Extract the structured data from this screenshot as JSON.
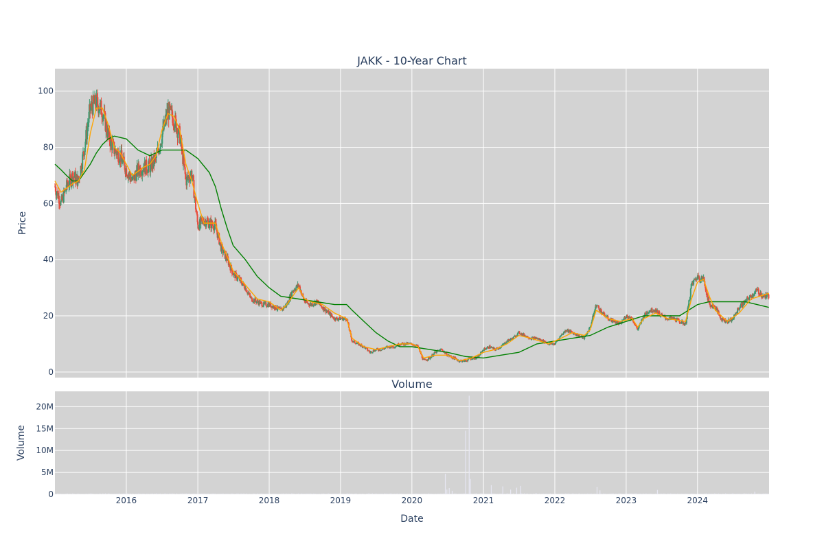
{
  "chart_data": [
    {
      "type": "candlestick",
      "title": "JAKK - 10-Year Chart",
      "xlabel": "",
      "ylabel": "Price",
      "ylim": [
        -2,
        108
      ],
      "yticks": [
        0,
        20,
        40,
        60,
        80,
        100
      ],
      "x_range": [
        "2015-01-01",
        "2025-01-01"
      ],
      "background": "#d3d3d3",
      "grid": true,
      "colors": {
        "up": "#3d9970",
        "down": "#e74c3c",
        "ma_fast": "#ffa500",
        "ma_slow": "#008000"
      },
      "price_path": [
        [
          "2015-01-01",
          66
        ],
        [
          "2015-02-01",
          60
        ],
        [
          "2015-03-01",
          66
        ],
        [
          "2015-04-01",
          70
        ],
        [
          "2015-05-01",
          68
        ],
        [
          "2015-06-01",
          80
        ],
        [
          "2015-07-01",
          94
        ],
        [
          "2015-08-01",
          96
        ],
        [
          "2015-09-01",
          93
        ],
        [
          "2015-10-01",
          84
        ],
        [
          "2015-11-01",
          79
        ],
        [
          "2015-12-01",
          77
        ],
        [
          "2016-01-01",
          72
        ],
        [
          "2016-02-01",
          68
        ],
        [
          "2016-03-01",
          72
        ],
        [
          "2016-04-01",
          73
        ],
        [
          "2016-05-01",
          73
        ],
        [
          "2016-06-01",
          76
        ],
        [
          "2016-07-01",
          84
        ],
        [
          "2016-08-01",
          93
        ],
        [
          "2016-09-01",
          90
        ],
        [
          "2016-10-01",
          84
        ],
        [
          "2016-11-01",
          68
        ],
        [
          "2016-12-01",
          71
        ],
        [
          "2017-01-01",
          52
        ],
        [
          "2017-02-01",
          54
        ],
        [
          "2017-03-01",
          53
        ],
        [
          "2017-04-01",
          52
        ],
        [
          "2017-05-01",
          44
        ],
        [
          "2017-06-01",
          40
        ],
        [
          "2017-07-01",
          35
        ],
        [
          "2017-08-01",
          33
        ],
        [
          "2017-09-01",
          30
        ],
        [
          "2017-10-01",
          26
        ],
        [
          "2017-11-01",
          25
        ],
        [
          "2017-12-01",
          24
        ],
        [
          "2018-01-01",
          24
        ],
        [
          "2018-02-01",
          23
        ],
        [
          "2018-03-01",
          22
        ],
        [
          "2018-04-01",
          24
        ],
        [
          "2018-05-01",
          29
        ],
        [
          "2018-06-01",
          31
        ],
        [
          "2018-07-01",
          25
        ],
        [
          "2018-08-01",
          24
        ],
        [
          "2018-09-01",
          25
        ],
        [
          "2018-10-01",
          23
        ],
        [
          "2018-11-01",
          21
        ],
        [
          "2018-12-01",
          19
        ],
        [
          "2019-01-01",
          19
        ],
        [
          "2019-02-01",
          19
        ],
        [
          "2019-03-01",
          11
        ],
        [
          "2019-04-01",
          10
        ],
        [
          "2019-05-01",
          9
        ],
        [
          "2019-06-01",
          7
        ],
        [
          "2019-07-01",
          8
        ],
        [
          "2019-08-01",
          8
        ],
        [
          "2019-09-01",
          9
        ],
        [
          "2019-10-01",
          9
        ],
        [
          "2019-11-01",
          10
        ],
        [
          "2019-12-01",
          10
        ],
        [
          "2020-01-01",
          10
        ],
        [
          "2020-02-01",
          9
        ],
        [
          "2020-03-01",
          4
        ],
        [
          "2020-04-01",
          5
        ],
        [
          "2020-05-01",
          7
        ],
        [
          "2020-06-01",
          8
        ],
        [
          "2020-07-01",
          6
        ],
        [
          "2020-08-01",
          5
        ],
        [
          "2020-09-01",
          4
        ],
        [
          "2020-10-01",
          4
        ],
        [
          "2020-11-01",
          5
        ],
        [
          "2020-12-01",
          5
        ],
        [
          "2021-01-01",
          8
        ],
        [
          "2021-02-01",
          9
        ],
        [
          "2021-03-01",
          8
        ],
        [
          "2021-04-01",
          9
        ],
        [
          "2021-05-01",
          11
        ],
        [
          "2021-06-01",
          12
        ],
        [
          "2021-07-01",
          14
        ],
        [
          "2021-08-01",
          13
        ],
        [
          "2021-09-01",
          12
        ],
        [
          "2021-10-01",
          12
        ],
        [
          "2021-11-01",
          11
        ],
        [
          "2021-12-01",
          10
        ],
        [
          "2022-01-01",
          10
        ],
        [
          "2022-02-01",
          13
        ],
        [
          "2022-03-01",
          15
        ],
        [
          "2022-04-01",
          14
        ],
        [
          "2022-05-01",
          13
        ],
        [
          "2022-06-01",
          12
        ],
        [
          "2022-07-01",
          16
        ],
        [
          "2022-08-01",
          24
        ],
        [
          "2022-09-01",
          21
        ],
        [
          "2022-10-01",
          19
        ],
        [
          "2022-11-01",
          18
        ],
        [
          "2022-12-01",
          17
        ],
        [
          "2023-01-01",
          20
        ],
        [
          "2023-02-01",
          19
        ],
        [
          "2023-03-01",
          15
        ],
        [
          "2023-04-01",
          20
        ],
        [
          "2023-05-01",
          22
        ],
        [
          "2023-06-01",
          22
        ],
        [
          "2023-07-01",
          20
        ],
        [
          "2023-08-01",
          19
        ],
        [
          "2023-09-01",
          19
        ],
        [
          "2023-10-01",
          18
        ],
        [
          "2023-11-01",
          17
        ],
        [
          "2023-12-01",
          31
        ],
        [
          "2024-01-01",
          34
        ],
        [
          "2024-02-01",
          33
        ],
        [
          "2024-03-01",
          24
        ],
        [
          "2024-04-01",
          23
        ],
        [
          "2024-05-01",
          19
        ],
        [
          "2024-06-01",
          18
        ],
        [
          "2024-07-01",
          19
        ],
        [
          "2024-08-01",
          23
        ],
        [
          "2024-09-01",
          25
        ],
        [
          "2024-10-01",
          27
        ],
        [
          "2024-11-01",
          29
        ],
        [
          "2024-12-01",
          27
        ],
        [
          "2024-12-31",
          27
        ]
      ],
      "ma_fast_path": [
        [
          "2015-01-01",
          68
        ],
        [
          "2015-02-01",
          64
        ],
        [
          "2015-04-01",
          67
        ],
        [
          "2015-05-01",
          68
        ],
        [
          "2015-06-01",
          72
        ],
        [
          "2015-07-01",
          85
        ],
        [
          "2015-08-01",
          94
        ],
        [
          "2015-09-01",
          94
        ],
        [
          "2015-10-01",
          88
        ],
        [
          "2015-11-01",
          80
        ],
        [
          "2015-12-01",
          78
        ],
        [
          "2016-01-01",
          74
        ],
        [
          "2016-02-01",
          70
        ],
        [
          "2016-04-01",
          73
        ],
        [
          "2016-05-01",
          74
        ],
        [
          "2016-06-01",
          77
        ],
        [
          "2016-07-01",
          86
        ],
        [
          "2016-08-01",
          92
        ],
        [
          "2016-09-01",
          91
        ],
        [
          "2016-10-01",
          86
        ],
        [
          "2016-11-01",
          74
        ],
        [
          "2016-12-01",
          68
        ],
        [
          "2017-01-01",
          60
        ],
        [
          "2017-02-01",
          53
        ],
        [
          "2017-04-01",
          53
        ],
        [
          "2017-05-01",
          46
        ],
        [
          "2017-06-01",
          41
        ],
        [
          "2017-07-01",
          36
        ],
        [
          "2017-09-01",
          31
        ],
        [
          "2017-11-01",
          26
        ],
        [
          "2018-01-01",
          25
        ],
        [
          "2018-03-01",
          22
        ],
        [
          "2018-04-01",
          24
        ],
        [
          "2018-06-01",
          30
        ],
        [
          "2018-07-01",
          26
        ],
        [
          "2018-08-01",
          25
        ],
        [
          "2018-10-01",
          24
        ],
        [
          "2018-12-01",
          21
        ],
        [
          "2019-02-01",
          19
        ],
        [
          "2019-03-01",
          12
        ],
        [
          "2019-05-01",
          9
        ],
        [
          "2019-07-01",
          8
        ],
        [
          "2019-09-01",
          9
        ],
        [
          "2019-11-01",
          10
        ],
        [
          "2020-01-01",
          10
        ],
        [
          "2020-02-01",
          9
        ],
        [
          "2020-03-01",
          5
        ],
        [
          "2020-05-01",
          6
        ],
        [
          "2020-07-01",
          6
        ],
        [
          "2020-09-01",
          4
        ],
        [
          "2020-11-01",
          5
        ],
        [
          "2021-01-01",
          7
        ],
        [
          "2021-03-01",
          8
        ],
        [
          "2021-05-01",
          10
        ],
        [
          "2021-07-01",
          13
        ],
        [
          "2021-09-01",
          12
        ],
        [
          "2021-12-01",
          10
        ],
        [
          "2022-02-01",
          12
        ],
        [
          "2022-04-01",
          14
        ],
        [
          "2022-06-01",
          13
        ],
        [
          "2022-07-01",
          15
        ],
        [
          "2022-08-01",
          22
        ],
        [
          "2022-10-01",
          19
        ],
        [
          "2022-12-01",
          18
        ],
        [
          "2023-02-01",
          19
        ],
        [
          "2023-03-01",
          16
        ],
        [
          "2023-04-01",
          19
        ],
        [
          "2023-06-01",
          21
        ],
        [
          "2023-08-01",
          19
        ],
        [
          "2023-11-01",
          18
        ],
        [
          "2023-12-01",
          26
        ],
        [
          "2024-01-01",
          32
        ],
        [
          "2024-02-01",
          33
        ],
        [
          "2024-03-01",
          27
        ],
        [
          "2024-04-01",
          22
        ],
        [
          "2024-06-01",
          18
        ],
        [
          "2024-08-01",
          21
        ],
        [
          "2024-10-01",
          26
        ],
        [
          "2024-12-31",
          28
        ]
      ],
      "ma_slow_path": [
        [
          "2015-01-01",
          74
        ],
        [
          "2015-02-01",
          72
        ],
        [
          "2015-03-01",
          70
        ],
        [
          "2015-04-01",
          68
        ],
        [
          "2015-05-01",
          68
        ],
        [
          "2015-06-01",
          71
        ],
        [
          "2015-07-01",
          74
        ],
        [
          "2015-08-01",
          78
        ],
        [
          "2015-09-01",
          81
        ],
        [
          "2015-10-01",
          83
        ],
        [
          "2015-11-01",
          84
        ],
        [
          "2016-01-01",
          83
        ],
        [
          "2016-03-01",
          79
        ],
        [
          "2016-05-01",
          77
        ],
        [
          "2016-07-01",
          79
        ],
        [
          "2016-09-01",
          79
        ],
        [
          "2016-11-01",
          79
        ],
        [
          "2017-01-01",
          76
        ],
        [
          "2017-03-01",
          71
        ],
        [
          "2017-04-01",
          66
        ],
        [
          "2017-05-01",
          58
        ],
        [
          "2017-06-01",
          51
        ],
        [
          "2017-07-01",
          45
        ],
        [
          "2017-09-01",
          40
        ],
        [
          "2017-11-01",
          34
        ],
        [
          "2018-01-01",
          30
        ],
        [
          "2018-03-01",
          27
        ],
        [
          "2018-06-01",
          26
        ],
        [
          "2018-09-01",
          25
        ],
        [
          "2018-12-01",
          24
        ],
        [
          "2019-02-01",
          24
        ],
        [
          "2019-03-01",
          22
        ],
        [
          "2019-05-01",
          18
        ],
        [
          "2019-07-01",
          14
        ],
        [
          "2019-09-01",
          11
        ],
        [
          "2019-11-01",
          9
        ],
        [
          "2020-01-01",
          9
        ],
        [
          "2020-04-01",
          8
        ],
        [
          "2020-07-01",
          7
        ],
        [
          "2020-10-01",
          5.5
        ],
        [
          "2021-01-01",
          5
        ],
        [
          "2021-04-01",
          6
        ],
        [
          "2021-07-01",
          7
        ],
        [
          "2021-10-01",
          10
        ],
        [
          "2022-01-01",
          11
        ],
        [
          "2022-04-01",
          12
        ],
        [
          "2022-07-01",
          13
        ],
        [
          "2022-10-01",
          16
        ],
        [
          "2023-01-01",
          18
        ],
        [
          "2023-04-01",
          20
        ],
        [
          "2023-07-01",
          20
        ],
        [
          "2023-10-01",
          20
        ],
        [
          "2024-01-01",
          24
        ],
        [
          "2024-03-01",
          25
        ],
        [
          "2024-06-01",
          25
        ],
        [
          "2024-09-01",
          25
        ],
        [
          "2024-12-31",
          23
        ]
      ]
    },
    {
      "type": "bar",
      "title": "Volume",
      "xlabel": "Date",
      "ylabel": "Volume",
      "ylim": [
        0,
        23500000
      ],
      "yticks": [
        0,
        5000000,
        10000000,
        15000000,
        20000000
      ],
      "ytick_labels": [
        "0",
        "5M",
        "10M",
        "15M",
        "20M"
      ],
      "xticks": [
        "2016-01-01",
        "2017-01-01",
        "2018-01-01",
        "2019-01-01",
        "2020-01-01",
        "2021-01-01",
        "2022-01-01",
        "2023-01-01",
        "2024-01-01"
      ],
      "xtick_labels": [
        "2016",
        "2017",
        "2018",
        "2019",
        "2020",
        "2021",
        "2022",
        "2023",
        "2024"
      ],
      "background": "#d3d3d3",
      "bar_color": "#e8e8f4",
      "grid": true,
      "baseline_volume": 150000,
      "spikes": [
        [
          "2020-06-20",
          4700000
        ],
        [
          "2020-06-28",
          1100000
        ],
        [
          "2020-07-10",
          1400000
        ],
        [
          "2020-07-25",
          800000
        ],
        [
          "2020-10-02",
          14500000
        ],
        [
          "2020-10-20",
          22500000
        ],
        [
          "2020-10-26",
          3500000
        ],
        [
          "2021-02-10",
          2100000
        ],
        [
          "2021-04-10",
          1800000
        ],
        [
          "2021-05-20",
          1100000
        ],
        [
          "2021-06-20",
          1500000
        ],
        [
          "2021-07-10",
          1900000
        ],
        [
          "2022-08-05",
          1700000
        ],
        [
          "2022-08-20",
          900000
        ],
        [
          "2023-06-10",
          1000000
        ],
        [
          "2024-10-20",
          600000
        ]
      ]
    }
  ]
}
